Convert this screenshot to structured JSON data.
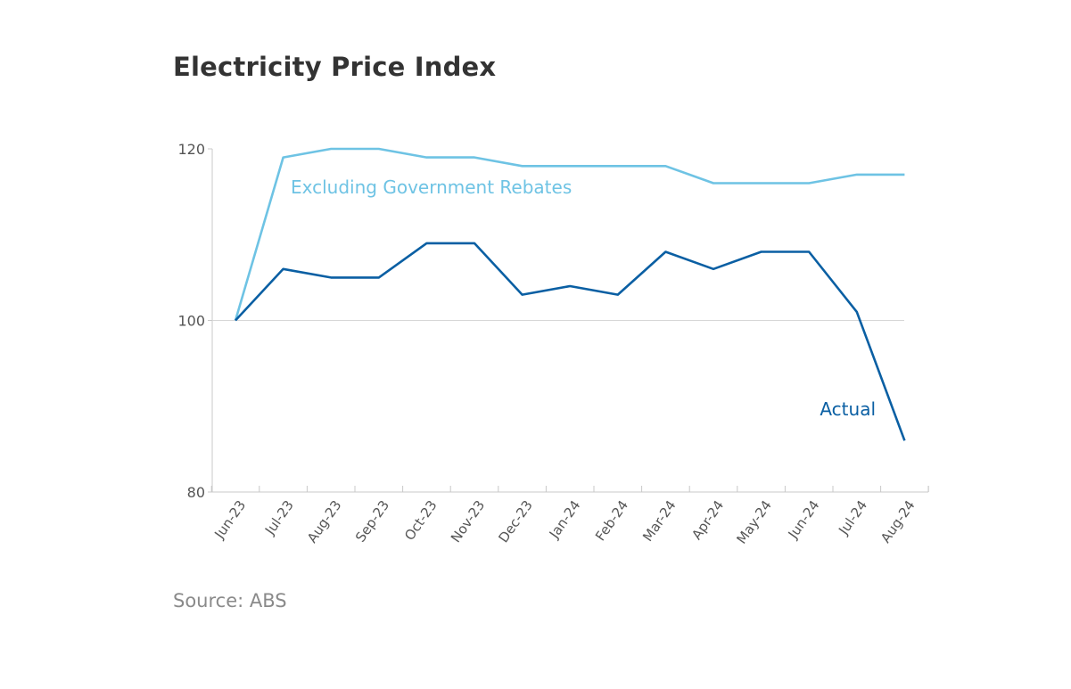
{
  "title": "Electricity Price Index",
  "source": "Source: ABS",
  "colors": {
    "excluding": "#6ec3e4",
    "actual": "#0a5fa3",
    "axis": "#c8c8c8",
    "gridline": "#d6d6d6"
  },
  "chart_data": {
    "type": "line",
    "title": "Electricity Price Index",
    "xlabel": "",
    "ylabel": "",
    "ylim": [
      80,
      120
    ],
    "yticks": [
      80,
      100,
      120
    ],
    "grid": "horizontal line at 100",
    "legend": "inline labels",
    "categories": [
      "Jun-23",
      "Jul-23",
      "Aug-23",
      "Sep-23",
      "Oct-23",
      "Nov-23",
      "Dec-23",
      "Jan-24",
      "Feb-24",
      "Mar-24",
      "Apr-24",
      "May-24",
      "Jun-24",
      "Jul-24",
      "Aug-24"
    ],
    "series": [
      {
        "name": "Excluding Government Rebates",
        "values": [
          100,
          119,
          120,
          120,
          119,
          119,
          118,
          118,
          118,
          118,
          116,
          116,
          116,
          117,
          117
        ]
      },
      {
        "name": "Actual",
        "values": [
          100,
          106,
          105,
          105,
          109,
          109,
          103,
          104,
          103,
          108,
          106,
          108,
          108,
          101,
          86
        ]
      }
    ]
  }
}
